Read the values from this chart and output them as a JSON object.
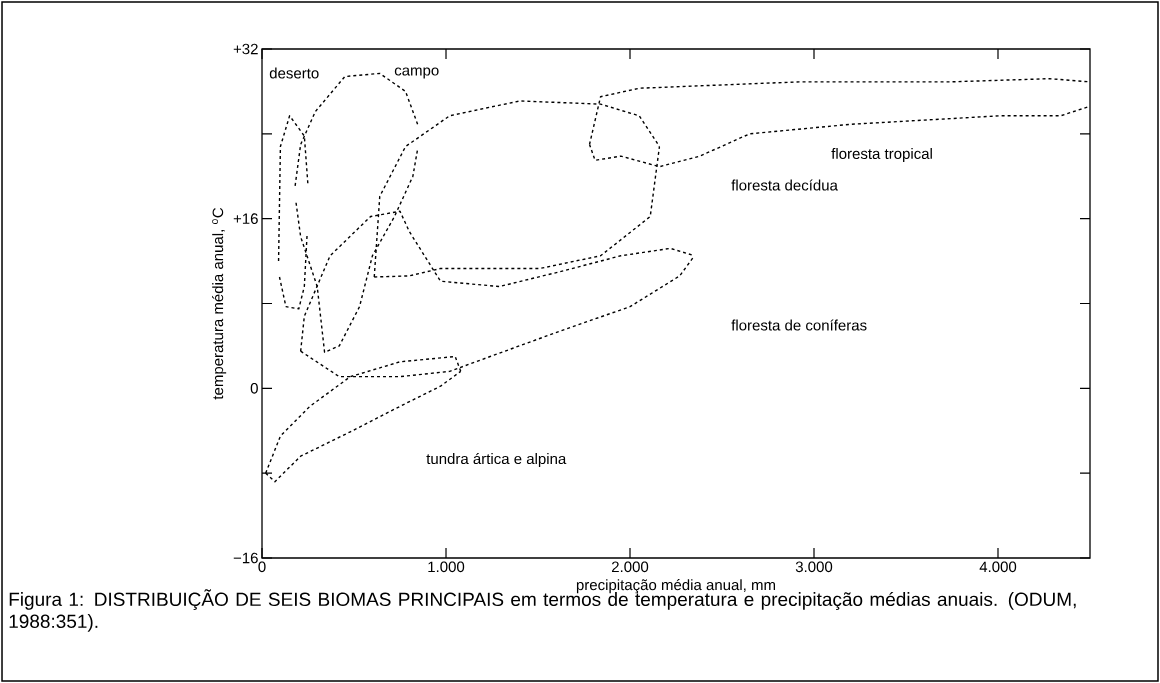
{
  "chart_data": {
    "type": "line",
    "xlabel": "precipitação média anual, mm",
    "ylabel": "temperatura média anual, $^{o}$C",
    "xlim": [
      0,
      4500
    ],
    "ylim": [
      -16,
      32
    ],
    "xticks": [
      {
        "value": 0,
        "label": "0"
      },
      {
        "value": 1000,
        "label": "1.000"
      },
      {
        "value": 2000,
        "label": "2.000"
      },
      {
        "value": 3000,
        "label": "3.000"
      },
      {
        "value": 4000,
        "label": "4.000"
      }
    ],
    "yticks": [
      {
        "value": -16,
        "label": "−16"
      },
      {
        "value": -8,
        "label": null
      },
      0,
      {
        "value": 8,
        "label": null
      },
      {
        "value": 16,
        "label": "+16"
      },
      {
        "value": 24,
        "label": null
      },
      {
        "value": 32,
        "label": "+32"
      }
    ],
    "line_style": "dashed",
    "marker": "none",
    "grid": false,
    "series": [
      {
        "color": "#000000",
        "x": [
          90,
          100,
          150,
          230,
          250
        ],
        "values": [
          12.0,
          22.8,
          25.7,
          23.8,
          19.1
        ]
      },
      {
        "color": "#000000",
        "x": [
          95,
          130,
          200,
          230,
          245
        ],
        "values": [
          10.5,
          7.7,
          7.5,
          9.6,
          14.5
        ]
      },
      {
        "color": "#000000",
        "x": [
          180,
          210,
          290,
          450,
          640,
          780,
          850
        ],
        "values": [
          19.1,
          23.0,
          26.1,
          29.4,
          29.7,
          28.0,
          24.7
        ]
      },
      {
        "color": "#000000",
        "x": [
          185,
          210,
          300,
          340,
          420,
          530,
          600,
          720,
          820,
          845
        ],
        "values": [
          17.5,
          14.3,
          9.6,
          3.4,
          4.0,
          7.7,
          12.5,
          16.2,
          20.0,
          22.5
        ]
      },
      {
        "color": "#000000",
        "x": [
          610,
          640,
          780,
          1020,
          1400,
          1840,
          2050,
          2160
        ],
        "values": [
          10.5,
          18.1,
          22.8,
          25.7,
          27.1,
          26.8,
          25.7,
          22.8
        ]
      },
      {
        "color": "#000000",
        "x": [
          610,
          800,
          970,
          1510,
          1840,
          2110,
          2160
        ],
        "values": [
          10.5,
          10.6,
          11.3,
          11.3,
          12.5,
          16.2,
          22.8
        ]
      },
      {
        "color": "#000000",
        "x": [
          1780,
          1840,
          2050,
          2920,
          3740,
          4280,
          4500
        ],
        "values": [
          23.0,
          27.5,
          28.3,
          28.9,
          28.9,
          29.2,
          28.9
        ]
      },
      {
        "color": "#000000",
        "x": [
          1780,
          1810,
          1950,
          2160,
          2380,
          2650,
          3200,
          4010,
          4340,
          4500
        ],
        "values": [
          23.0,
          21.5,
          21.9,
          20.9,
          21.9,
          24.0,
          24.9,
          25.7,
          25.7,
          26.6
        ]
      },
      {
        "color": "#000000",
        "x": [
          210,
          230,
          370,
          590,
          750,
          800,
          970,
          1290,
          1620,
          1950,
          2220,
          2350
        ],
        "values": [
          3.5,
          6.8,
          12.5,
          16.2,
          16.7,
          14.8,
          10.1,
          9.6,
          11.0,
          12.5,
          13.2,
          12.5
        ]
      },
      {
        "color": "#000000",
        "x": [
          210,
          420,
          750,
          1020,
          1240,
          1620,
          2000,
          2270,
          2350
        ],
        "values": [
          3.5,
          1.1,
          1.1,
          1.6,
          3.0,
          5.4,
          7.7,
          10.6,
          12.5
        ]
      },
      {
        "color": "#000000",
        "x": [
          20,
          100,
          260,
          480,
          750,
          1050,
          1080
        ],
        "values": [
          -8.0,
          -4.5,
          -1.7,
          1.1,
          2.5,
          3.0,
          1.6
        ]
      },
      {
        "color": "#000000",
        "x": [
          20,
          70,
          210,
          480,
          750,
          970,
          1080
        ],
        "values": [
          -8.0,
          -8.8,
          -6.4,
          -4.1,
          -1.7,
          0.2,
          1.6
        ]
      }
    ],
    "annotations": [
      "deserto",
      "campo",
      "floresta tropical",
      "floresta decídua",
      "floresta de coníferas",
      "tundra ártica e alpina",
      "Figura 1: DISTRIBUIÇÃO DE SEIS BIOMAS PRINCIPAIS em termos de temperatura  e precipitação médias anuais. (ODUM, 1988:351)."
    ]
  }
}
